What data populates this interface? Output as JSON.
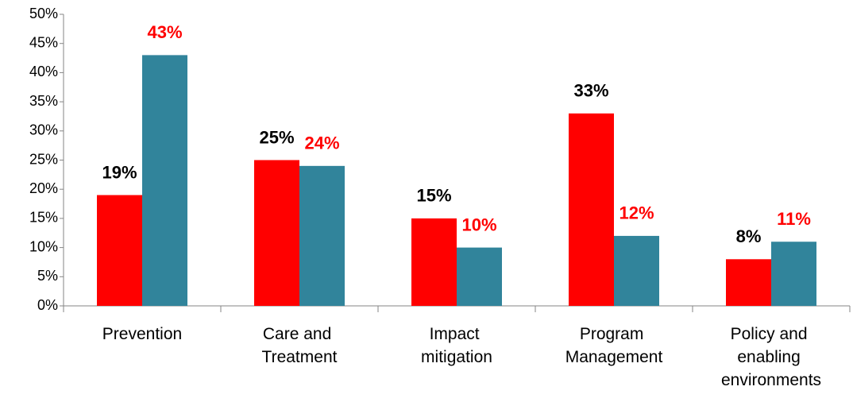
{
  "chart_data": {
    "type": "bar",
    "categories": [
      "Prevention",
      "Care and Treatment",
      "Impact mitigation",
      "Program Management",
      "Policy and enabling environments"
    ],
    "series": [
      {
        "color": "#ff0000",
        "label_color": "#000000",
        "values": [
          19,
          25,
          15,
          33,
          8
        ],
        "value_labels": [
          "19%",
          "25%",
          "15%",
          "33%",
          "8%"
        ]
      },
      {
        "color": "#31849b",
        "label_color": "#ff0000",
        "values": [
          43,
          24,
          10,
          12,
          11
        ],
        "value_labels": [
          "43%",
          "24%",
          "10%",
          "12%",
          "11%"
        ]
      }
    ],
    "ylim": [
      0,
      50
    ],
    "yticks": [
      {
        "value": 0,
        "label": "0%"
      },
      {
        "value": 5,
        "label": "5%"
      },
      {
        "value": 10,
        "label": "10%"
      },
      {
        "value": 15,
        "label": "15%"
      },
      {
        "value": 20,
        "label": "20%"
      },
      {
        "value": 25,
        "label": "25%"
      },
      {
        "value": 30,
        "label": "30%"
      },
      {
        "value": 35,
        "label": "35%"
      },
      {
        "value": 40,
        "label": "40%"
      },
      {
        "value": 45,
        "label": "45%"
      },
      {
        "value": 50,
        "label": "50%"
      }
    ],
    "grid": false
  }
}
